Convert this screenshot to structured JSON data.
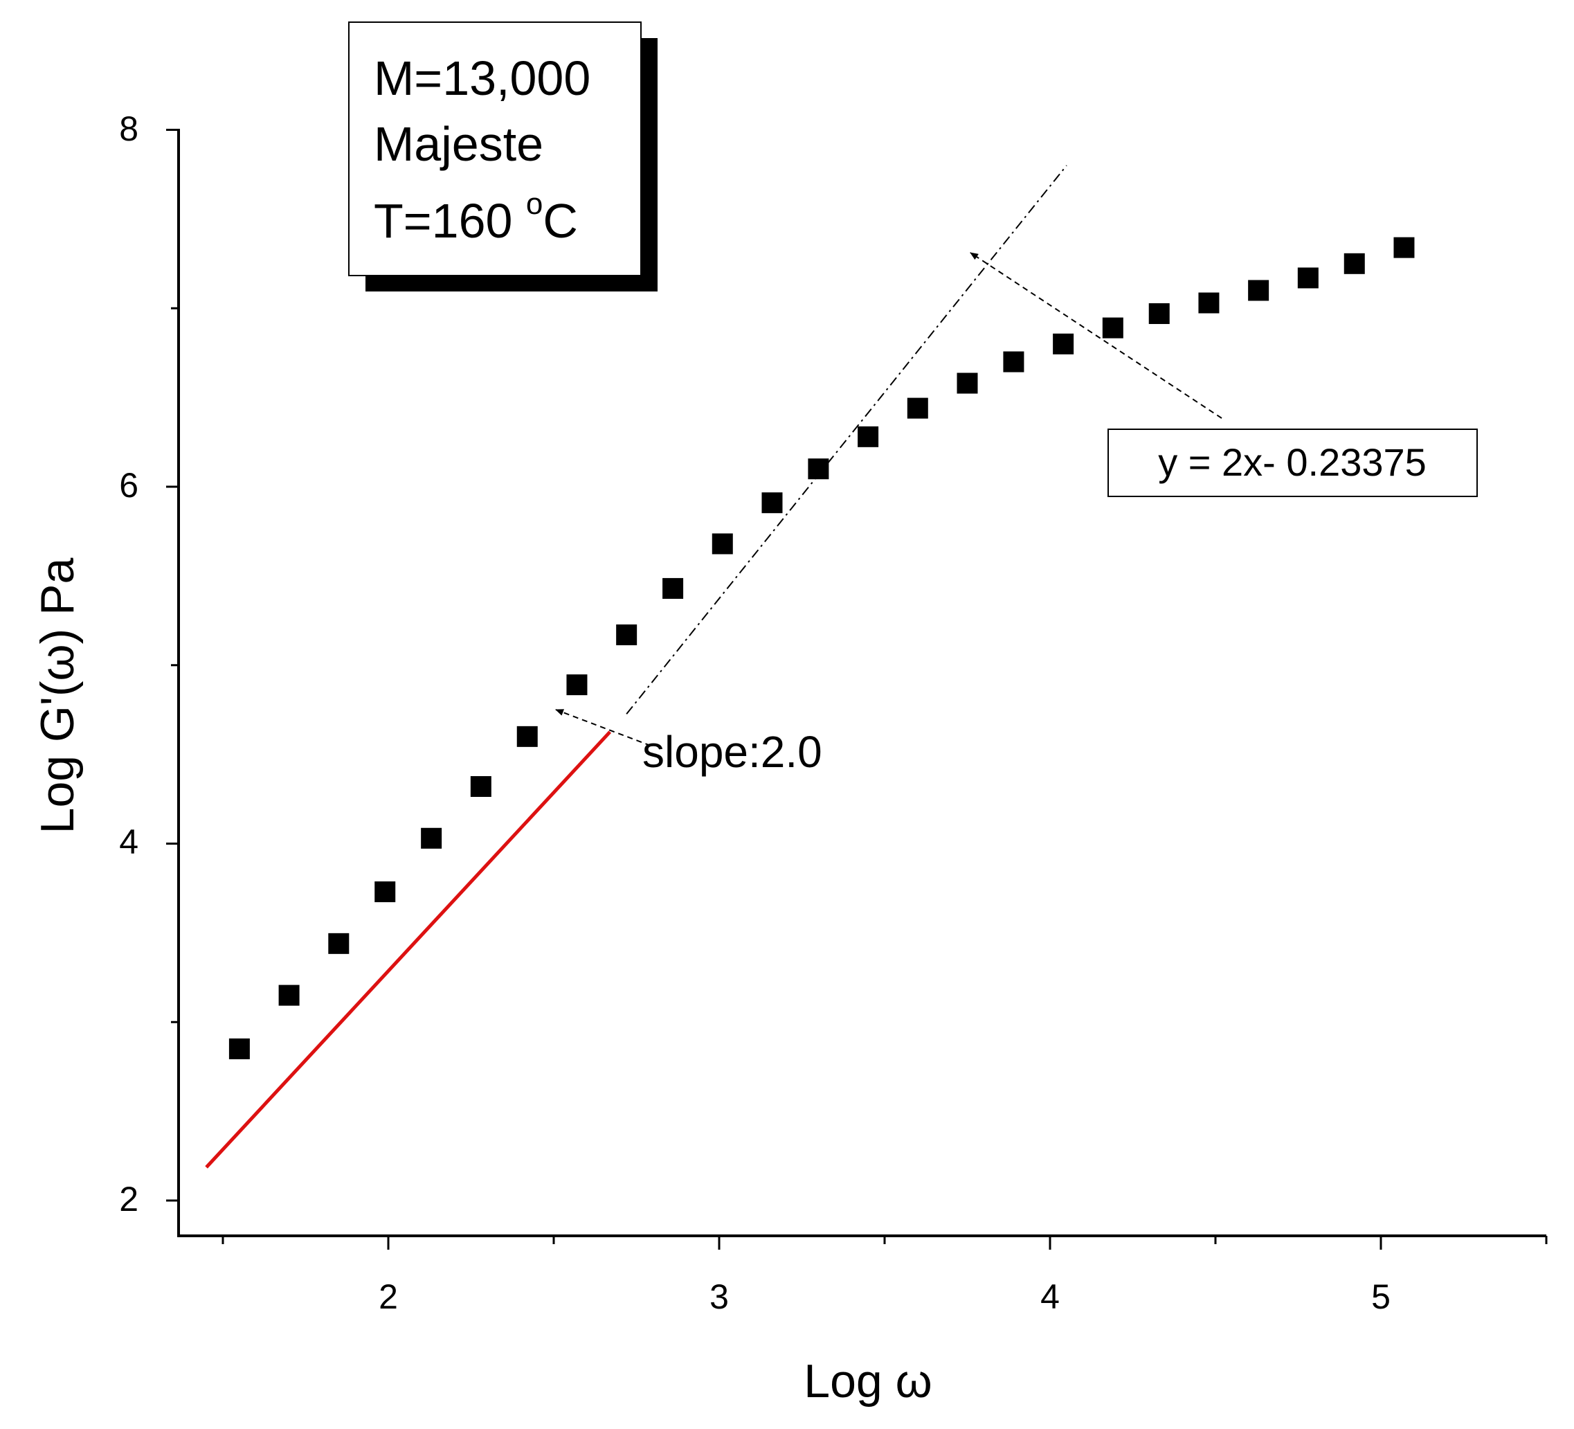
{
  "chart_data": {
    "type": "scatter",
    "xlabel": "Log ω",
    "ylabel": "Log G'(ω) Pa",
    "xlim": [
      1.5,
      5.5
    ],
    "ylim": [
      1.8,
      8.0
    ],
    "x_ticks": [
      "2",
      "3",
      "4",
      "5"
    ],
    "y_ticks": [
      "2",
      "4",
      "6",
      "8"
    ],
    "grid": false,
    "series": [
      {
        "marker": "square",
        "color": "#000000",
        "x": [
          1.55,
          1.7,
          1.85,
          1.99,
          2.13,
          2.28,
          2.42,
          2.57,
          2.72,
          2.86,
          3.01,
          3.16,
          3.3,
          3.45,
          3.6,
          3.75,
          3.89,
          4.04,
          4.19,
          4.33,
          4.48,
          4.63,
          4.78,
          4.92,
          5.07
        ],
        "y": [
          2.85,
          3.15,
          3.44,
          3.73,
          4.03,
          4.32,
          4.6,
          4.89,
          5.17,
          5.43,
          5.68,
          5.91,
          6.1,
          6.28,
          6.44,
          6.58,
          6.7,
          6.8,
          6.89,
          6.97,
          7.03,
          7.1,
          7.17,
          7.25,
          7.34
        ]
      }
    ],
    "fit_line": {
      "color": "#dd1111",
      "x_range": [
        1.55,
        2.72
      ],
      "slope": 2.0,
      "intercept": -0.23375
    },
    "extrapolation": {
      "style": "dash-dot",
      "x_range": [
        2.72,
        4.05
      ],
      "slope": 2.0,
      "intercept": -0.23375
    },
    "annotations": {
      "slope_label": "slope:2.0",
      "equation": "y = 2x- 0.23375"
    },
    "info_box": {
      "line1": "M=13,000",
      "line2": "Majeste",
      "line3_prefix": "T=160 ",
      "line3_sup": "o",
      "line3_suffix": "C"
    }
  }
}
